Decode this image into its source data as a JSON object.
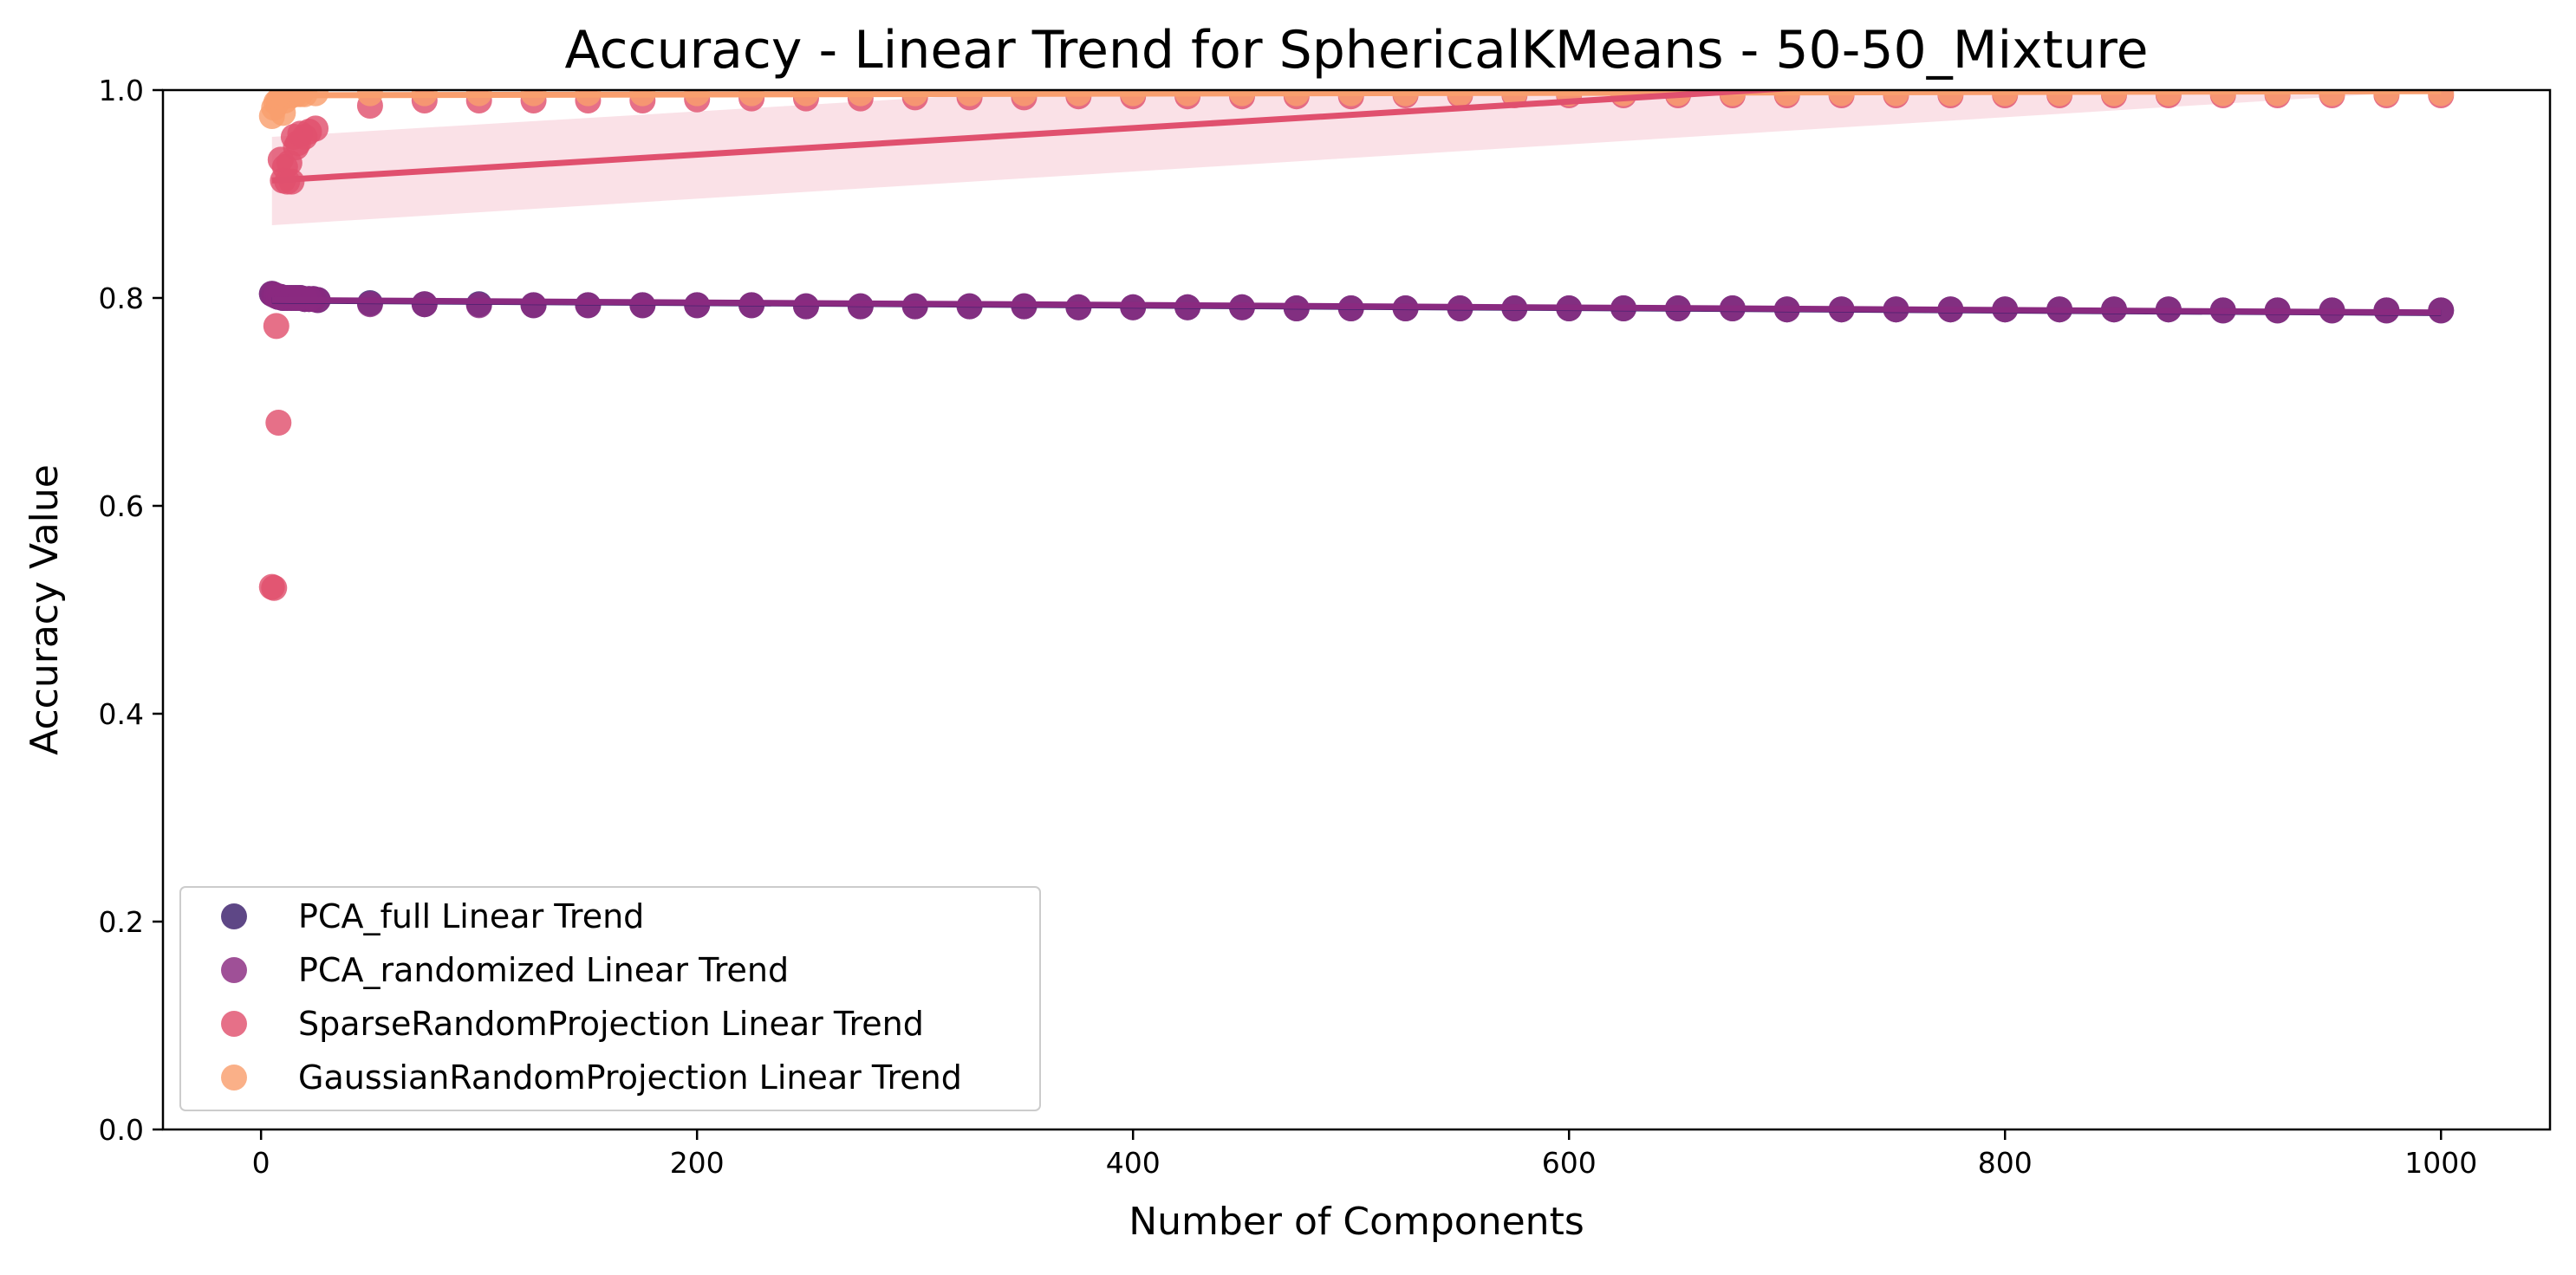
{
  "chart_data": {
    "type": "scatter",
    "title": "Accuracy - Linear Trend for SphericalKMeans - 50-50_Mixture",
    "xlabel": "Number of Components",
    "ylabel": "Accuracy Value",
    "xlim": [
      -45,
      1050
    ],
    "ylim": [
      0.0,
      1.0
    ],
    "xticks": [
      0,
      200,
      400,
      600,
      800,
      1000
    ],
    "yticks": [
      0.0,
      0.2,
      0.4,
      0.6,
      0.8,
      1.0
    ],
    "xtick_labels": [
      "0",
      "200",
      "400",
      "600",
      "800",
      "1000"
    ],
    "ytick_labels": [
      "0.0",
      "0.2",
      "0.4",
      "0.6",
      "0.8",
      "1.0"
    ],
    "grid": false,
    "legend_position": "lower-left",
    "series": [
      {
        "name": "PCA_full Linear Trend",
        "color": "#3b1f6b",
        "trend": {
          "x": [
            5,
            1000
          ],
          "y": [
            0.7975,
            0.7855
          ]
        },
        "points": [
          [
            5,
            0.804
          ],
          [
            6,
            0.803
          ],
          [
            7,
            0.802
          ],
          [
            8,
            0.801
          ],
          [
            9,
            0.801
          ],
          [
            10,
            0.8
          ],
          [
            12,
            0.8
          ],
          [
            14,
            0.8
          ],
          [
            16,
            0.8
          ],
          [
            18,
            0.8
          ],
          [
            20,
            0.799
          ],
          [
            22,
            0.799
          ],
          [
            24,
            0.799
          ],
          [
            26,
            0.798
          ],
          [
            50,
            0.795
          ],
          [
            75,
            0.794
          ],
          [
            100,
            0.794
          ],
          [
            125,
            0.793
          ],
          [
            150,
            0.793
          ],
          [
            175,
            0.793
          ],
          [
            200,
            0.793
          ],
          [
            225,
            0.793
          ],
          [
            250,
            0.792
          ],
          [
            275,
            0.792
          ],
          [
            300,
            0.792
          ],
          [
            325,
            0.792
          ],
          [
            350,
            0.792
          ],
          [
            375,
            0.791
          ],
          [
            400,
            0.791
          ],
          [
            425,
            0.791
          ],
          [
            450,
            0.791
          ],
          [
            475,
            0.79
          ],
          [
            500,
            0.79
          ],
          [
            525,
            0.79
          ],
          [
            550,
            0.79
          ],
          [
            575,
            0.79
          ],
          [
            600,
            0.79
          ],
          [
            625,
            0.79
          ],
          [
            650,
            0.79
          ],
          [
            675,
            0.79
          ],
          [
            700,
            0.789
          ],
          [
            725,
            0.789
          ],
          [
            750,
            0.789
          ],
          [
            775,
            0.789
          ],
          [
            800,
            0.789
          ],
          [
            825,
            0.789
          ],
          [
            850,
            0.789
          ],
          [
            875,
            0.789
          ],
          [
            900,
            0.788
          ],
          [
            925,
            0.788
          ],
          [
            950,
            0.788
          ],
          [
            975,
            0.788
          ],
          [
            1000,
            0.788
          ]
        ]
      },
      {
        "name": "PCA_randomized Linear Trend",
        "color": "#8a2a80",
        "trend": {
          "x": [
            5,
            1000
          ],
          "y": [
            0.798,
            0.786
          ]
        },
        "points": [
          [
            5,
            0.804
          ],
          [
            6,
            0.803
          ],
          [
            7,
            0.802
          ],
          [
            8,
            0.801
          ],
          [
            9,
            0.801
          ],
          [
            10,
            0.8
          ],
          [
            12,
            0.8
          ],
          [
            14,
            0.8
          ],
          [
            16,
            0.8
          ],
          [
            18,
            0.8
          ],
          [
            20,
            0.799
          ],
          [
            22,
            0.799
          ],
          [
            24,
            0.799
          ],
          [
            26,
            0.798
          ],
          [
            50,
            0.794
          ],
          [
            75,
            0.794
          ],
          [
            100,
            0.793
          ],
          [
            125,
            0.793
          ],
          [
            150,
            0.793
          ],
          [
            175,
            0.793
          ],
          [
            200,
            0.793
          ],
          [
            225,
            0.793
          ],
          [
            250,
            0.792
          ],
          [
            275,
            0.792
          ],
          [
            300,
            0.792
          ],
          [
            325,
            0.792
          ],
          [
            350,
            0.792
          ],
          [
            375,
            0.791
          ],
          [
            400,
            0.791
          ],
          [
            425,
            0.791
          ],
          [
            450,
            0.791
          ],
          [
            475,
            0.79
          ],
          [
            500,
            0.79
          ],
          [
            525,
            0.79
          ],
          [
            550,
            0.79
          ],
          [
            575,
            0.79
          ],
          [
            600,
            0.79
          ],
          [
            625,
            0.79
          ],
          [
            650,
            0.79
          ],
          [
            675,
            0.79
          ],
          [
            700,
            0.789
          ],
          [
            725,
            0.789
          ],
          [
            750,
            0.789
          ],
          [
            775,
            0.789
          ],
          [
            800,
            0.789
          ],
          [
            825,
            0.789
          ],
          [
            850,
            0.789
          ],
          [
            875,
            0.789
          ],
          [
            900,
            0.788
          ],
          [
            925,
            0.788
          ],
          [
            950,
            0.788
          ],
          [
            975,
            0.788
          ],
          [
            1000,
            0.788
          ]
        ]
      },
      {
        "name": "SparseRandomProjection Linear Trend",
        "color": "#e0506e",
        "trend": {
          "x": [
            5,
            1000
          ],
          "y": [
            0.913,
            1.04
          ]
        },
        "band": {
          "x": [
            5,
            1000
          ],
          "lower": [
            0.87,
            1.0
          ],
          "upper": [
            0.955,
            1.08
          ]
        },
        "points": [
          [
            5,
            0.522
          ],
          [
            6,
            0.521
          ],
          [
            7,
            0.773
          ],
          [
            8,
            0.68
          ],
          [
            9,
            0.933
          ],
          [
            10,
            0.913
          ],
          [
            11,
            0.926
          ],
          [
            12,
            0.912
          ],
          [
            13,
            0.93
          ],
          [
            14,
            0.912
          ],
          [
            15,
            0.955
          ],
          [
            16,
            0.945
          ],
          [
            17,
            0.949
          ],
          [
            18,
            0.958
          ],
          [
            20,
            0.955
          ],
          [
            22,
            0.96
          ],
          [
            25,
            0.963
          ],
          [
            50,
            0.985
          ],
          [
            75,
            0.99
          ],
          [
            100,
            0.99
          ],
          [
            125,
            0.99
          ],
          [
            150,
            0.99
          ],
          [
            175,
            0.99
          ],
          [
            200,
            0.991
          ],
          [
            225,
            0.992
          ],
          [
            250,
            0.992
          ],
          [
            275,
            0.992
          ],
          [
            300,
            0.993
          ],
          [
            325,
            0.993
          ],
          [
            350,
            0.993
          ],
          [
            375,
            0.994
          ],
          [
            400,
            0.994
          ],
          [
            425,
            0.994
          ],
          [
            450,
            0.994
          ],
          [
            475,
            0.994
          ],
          [
            500,
            0.994
          ],
          [
            525,
            0.995
          ],
          [
            550,
            0.995
          ],
          [
            575,
            0.995
          ],
          [
            600,
            0.995
          ],
          [
            625,
            0.995
          ],
          [
            650,
            0.995
          ],
          [
            675,
            0.995
          ],
          [
            700,
            0.995
          ],
          [
            725,
            0.995
          ],
          [
            750,
            0.995
          ],
          [
            775,
            0.995
          ],
          [
            800,
            0.995
          ],
          [
            825,
            0.995
          ],
          [
            850,
            0.995
          ],
          [
            875,
            0.995
          ],
          [
            900,
            0.995
          ],
          [
            925,
            0.995
          ],
          [
            950,
            0.995
          ],
          [
            975,
            0.995
          ],
          [
            1000,
            0.995
          ]
        ]
      },
      {
        "name": "GaussianRandomProjection Linear Trend",
        "color": "#f99f6e",
        "trend": {
          "x": [
            5,
            1000
          ],
          "y": [
            0.995,
            0.999
          ]
        },
        "points": [
          [
            5,
            0.975
          ],
          [
            6,
            0.983
          ],
          [
            7,
            0.988
          ],
          [
            8,
            0.99
          ],
          [
            9,
            0.993
          ],
          [
            10,
            0.978
          ],
          [
            11,
            0.99
          ],
          [
            12,
            0.995
          ],
          [
            14,
            0.995
          ],
          [
            16,
            0.996
          ],
          [
            18,
            0.996
          ],
          [
            20,
            0.996
          ],
          [
            25,
            0.997
          ],
          [
            50,
            0.997
          ],
          [
            75,
            0.997
          ],
          [
            100,
            0.997
          ],
          [
            125,
            0.997
          ],
          [
            150,
            0.997
          ],
          [
            175,
            0.997
          ],
          [
            200,
            0.997
          ],
          [
            225,
            0.997
          ],
          [
            250,
            0.997
          ],
          [
            275,
            0.997
          ],
          [
            300,
            0.997
          ],
          [
            325,
            0.997
          ],
          [
            350,
            0.997
          ],
          [
            375,
            0.997
          ],
          [
            400,
            0.997
          ],
          [
            425,
            0.997
          ],
          [
            450,
            0.997
          ],
          [
            475,
            0.997
          ],
          [
            500,
            0.997
          ],
          [
            525,
            0.997
          ],
          [
            550,
            0.997
          ],
          [
            575,
            0.997
          ],
          [
            600,
            0.997
          ],
          [
            625,
            0.997
          ],
          [
            650,
            0.997
          ],
          [
            675,
            0.997
          ],
          [
            700,
            0.997
          ],
          [
            725,
            0.997
          ],
          [
            750,
            0.997
          ],
          [
            775,
            0.997
          ],
          [
            800,
            0.997
          ],
          [
            825,
            0.997
          ],
          [
            850,
            0.997
          ],
          [
            875,
            0.997
          ],
          [
            900,
            0.997
          ],
          [
            925,
            0.997
          ],
          [
            950,
            0.997
          ],
          [
            975,
            0.997
          ],
          [
            1000,
            0.997
          ]
        ]
      }
    ]
  }
}
